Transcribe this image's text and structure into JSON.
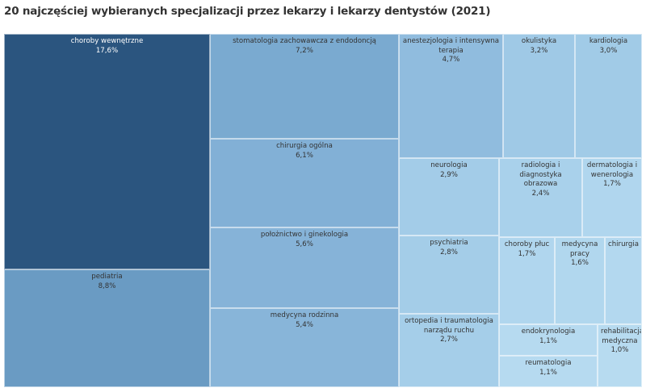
{
  "title": "20 najczęściej wybieranych specjalizacji przez lekarzy i lekarzy dentystów (2021)",
  "chart_data": {
    "type": "treemap",
    "title": "20 najczęściej wybieranych specjalizacji przez lekarzy i lekarzy dentystów (2021)",
    "unit": "%",
    "items": [
      {
        "label": "choroby wewnętrzne",
        "value": 17.6,
        "display": "17,6%",
        "color": "#2b557f",
        "text": "dark"
      },
      {
        "label": "pediatria",
        "value": 8.8,
        "display": "8,8%",
        "color": "#6a9bc3",
        "text": "light"
      },
      {
        "label": "stomatologia zachowawcza z endodoncją",
        "value": 7.2,
        "display": "7,2%",
        "color": "#7aaad0",
        "text": "light"
      },
      {
        "label": "chirurgia ogólna",
        "value": 6.1,
        "display": "6,1%",
        "color": "#82b0d6",
        "text": "light"
      },
      {
        "label": "położnictwo i ginekologia",
        "value": 5.6,
        "display": "5,6%",
        "color": "#86b3d8",
        "text": "light"
      },
      {
        "label": "medycyna rodzinna",
        "value": 5.4,
        "display": "5,4%",
        "color": "#88b5d9",
        "text": "light"
      },
      {
        "label": "anestezjologia i intensywna terapia",
        "value": 4.7,
        "display": "4,7%",
        "color": "#90bcde",
        "text": "light"
      },
      {
        "label": "okulistyka",
        "value": 3.2,
        "display": "3,2%",
        "color": "#9fc9e6",
        "text": "light"
      },
      {
        "label": "kardiologia",
        "value": 3.0,
        "display": "3,0%",
        "color": "#a1cbe7",
        "text": "light"
      },
      {
        "label": "neurologia",
        "value": 2.9,
        "display": "2,9%",
        "color": "#a3cce8",
        "text": "light"
      },
      {
        "label": "psychiatria",
        "value": 2.8,
        "display": "2,8%",
        "color": "#a4cde8",
        "text": "light"
      },
      {
        "label": "ortopedia i traumatologia narządu ruchu",
        "value": 2.7,
        "display": "2,7%",
        "color": "#a5cee9",
        "text": "light"
      },
      {
        "label": "radiologia i diagnostyka obrazowa",
        "value": 2.4,
        "display": "2,4%",
        "color": "#a9d1eb",
        "text": "light"
      },
      {
        "label": "dermatologia i wenerologia",
        "value": 1.7,
        "display": "1,7%",
        "color": "#b0d6ee",
        "text": "light"
      },
      {
        "label": "choroby płuc",
        "value": 1.7,
        "display": "1,7%",
        "color": "#b0d6ee",
        "text": "light"
      },
      {
        "label": "medycyna pracy",
        "value": 1.6,
        "display": "1,6%",
        "color": "#b1d7ee",
        "text": "light"
      },
      {
        "label": "chirurgia",
        "value": null,
        "display": "",
        "color": "#b3d8ef",
        "text": "light"
      },
      {
        "label": "endokrynologia",
        "value": 1.1,
        "display": "1,1%",
        "color": "#b6daf0",
        "text": "light"
      },
      {
        "label": "reumatologia",
        "value": 1.1,
        "display": "1,1%",
        "color": "#b6daf0",
        "text": "light"
      },
      {
        "label": "rehabilitacja medyczna",
        "value": 1.0,
        "display": "1,0%",
        "color": "#b7dbf0",
        "text": "light"
      }
    ]
  }
}
